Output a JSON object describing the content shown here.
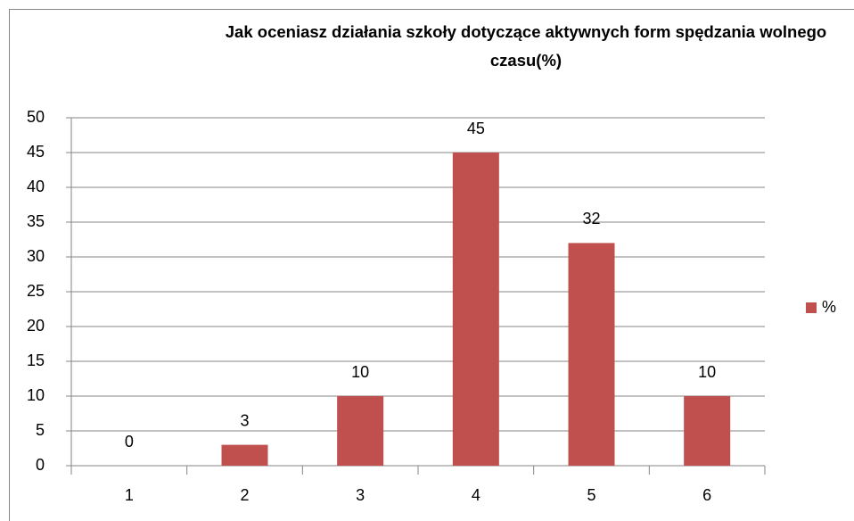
{
  "chart_data": {
    "type": "bar",
    "title": "Jak oceniasz działania szkoły dotyczące aktywnych form spędzania wolnego czasu(%)",
    "categories": [
      "1",
      "2",
      "3",
      "4",
      "5",
      "6"
    ],
    "series": [
      {
        "name": "%",
        "color": "#c0504d",
        "values": [
          0,
          3,
          10,
          45,
          32,
          10
        ]
      }
    ],
    "ylim": [
      0,
      50
    ],
    "yticks": [
      0,
      5,
      10,
      15,
      20,
      25,
      30,
      35,
      40,
      45,
      50
    ],
    "grid": true,
    "legend": "right"
  }
}
